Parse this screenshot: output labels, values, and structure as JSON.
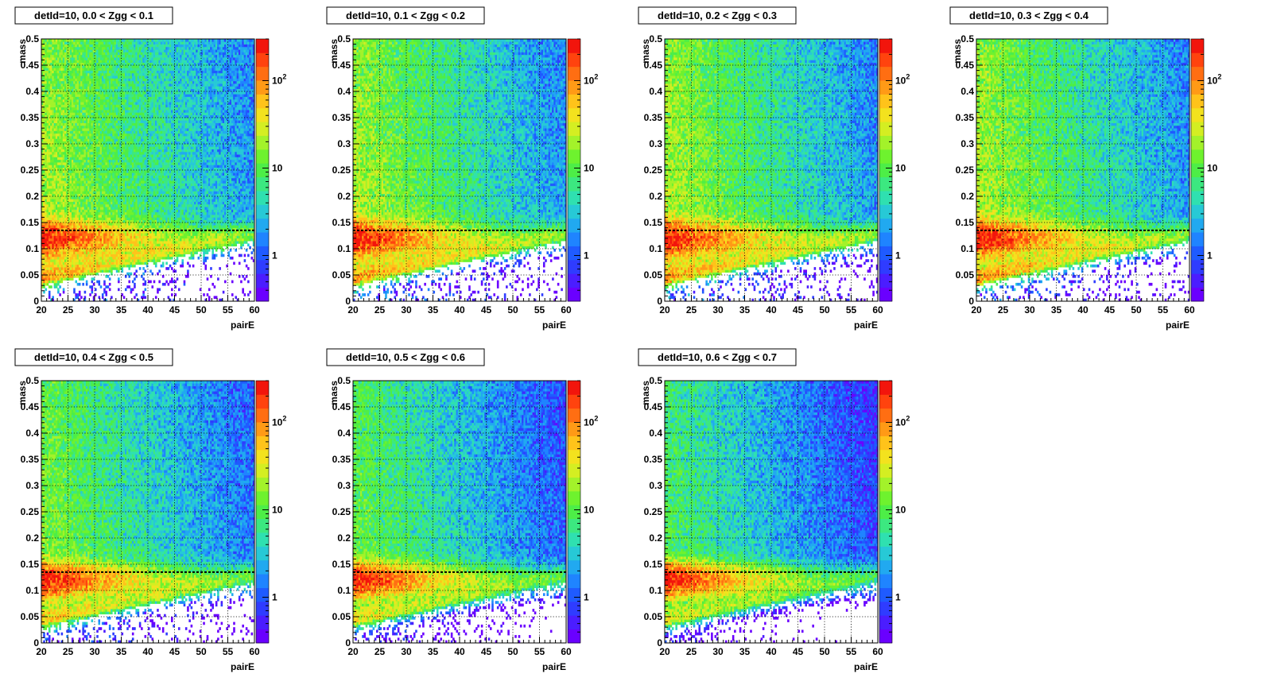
{
  "chart_data": [
    {
      "type": "heatmap",
      "title": "detId=10, 0.0 < Zgg < 0.1",
      "xlabel": "pairE",
      "ylabel": "mass",
      "xlim": [
        20,
        60
      ],
      "ylim": [
        0,
        0.5
      ],
      "x_ticks": [
        20,
        25,
        30,
        35,
        40,
        45,
        50,
        55,
        60
      ],
      "y_ticks": [
        0,
        0.05,
        0.1,
        0.15,
        0.2,
        0.25,
        0.3,
        0.35,
        0.4,
        0.45,
        0.5
      ],
      "z_scale": "log",
      "z_ticks": [
        "1",
        "10",
        "10^2"
      ],
      "z_max": 300,
      "grid": true,
      "reference_line_mass": 0.135,
      "peak": {
        "mass": 0.12,
        "pairE_center": 28,
        "max_counts": 300
      },
      "dist": {
        "a": 0.02,
        "b": 0.95,
        "bg": 40,
        "cd": 6,
        "ce": 20
      }
    },
    {
      "type": "heatmap",
      "title": "detId=10, 0.1 < Zgg < 0.2",
      "xlabel": "pairE",
      "ylabel": "mass",
      "xlim": [
        20,
        60
      ],
      "ylim": [
        0,
        0.5
      ],
      "x_ticks": [
        20,
        25,
        30,
        35,
        40,
        45,
        50,
        55,
        60
      ],
      "y_ticks": [
        0,
        0.05,
        0.1,
        0.15,
        0.2,
        0.25,
        0.3,
        0.35,
        0.4,
        0.45,
        0.5
      ],
      "z_scale": "log",
      "z_ticks": [
        "1",
        "10",
        "10^2"
      ],
      "z_max": 300,
      "grid": true,
      "reference_line_mass": 0.135,
      "peak": {
        "mass": 0.12,
        "pairE_center": 28,
        "max_counts": 300
      },
      "dist": {
        "a": 0.02,
        "b": 0.95,
        "bg": 40,
        "cd": 6,
        "ce": 20
      }
    },
    {
      "type": "heatmap",
      "title": "detId=10, 0.2 < Zgg < 0.3",
      "xlabel": "pairE",
      "ylabel": "mass",
      "xlim": [
        20,
        60
      ],
      "ylim": [
        0,
        0.5
      ],
      "x_ticks": [
        20,
        25,
        30,
        35,
        40,
        45,
        50,
        55,
        60
      ],
      "y_ticks": [
        0,
        0.05,
        0.1,
        0.15,
        0.2,
        0.25,
        0.3,
        0.35,
        0.4,
        0.45,
        0.5
      ],
      "z_scale": "log",
      "z_ticks": [
        "1",
        "10",
        "10^2"
      ],
      "z_max": 300,
      "grid": true,
      "reference_line_mass": 0.135,
      "peak": {
        "mass": 0.12,
        "pairE_center": 28,
        "max_counts": 300
      },
      "dist": {
        "a": 0.02,
        "b": 0.95,
        "bg": 40,
        "cd": 6,
        "ce": 20
      }
    },
    {
      "type": "heatmap",
      "title": "detId=10, 0.3 < Zgg < 0.4",
      "xlabel": "pairE",
      "ylabel": "mass",
      "xlim": [
        20,
        60
      ],
      "ylim": [
        0,
        0.5
      ],
      "x_ticks": [
        20,
        25,
        30,
        35,
        40,
        45,
        50,
        55,
        60
      ],
      "y_ticks": [
        0,
        0.05,
        0.1,
        0.15,
        0.2,
        0.25,
        0.3,
        0.35,
        0.4,
        0.45,
        0.5
      ],
      "z_scale": "log",
      "z_ticks": [
        "1",
        "10",
        "10^2"
      ],
      "z_max": 300,
      "grid": true,
      "reference_line_mass": 0.135,
      "peak": {
        "mass": 0.12,
        "pairE_center": 28,
        "max_counts": 300
      },
      "dist": {
        "a": 0.02,
        "b": 0.95,
        "bg": 40,
        "cd": 6,
        "ce": 20
      }
    },
    {
      "type": "heatmap",
      "title": "detId=10, 0.4 < Zgg < 0.5",
      "xlabel": "pairE",
      "ylabel": "mass",
      "xlim": [
        20,
        60
      ],
      "ylim": [
        0,
        0.5
      ],
      "x_ticks": [
        20,
        25,
        30,
        35,
        40,
        45,
        50,
        55,
        60
      ],
      "y_ticks": [
        0,
        0.05,
        0.1,
        0.15,
        0.2,
        0.25,
        0.3,
        0.35,
        0.4,
        0.45,
        0.5
      ],
      "z_scale": "log",
      "z_ticks": [
        "1",
        "10",
        "10^2"
      ],
      "z_max": 300,
      "grid": true,
      "reference_line_mass": 0.135,
      "peak": {
        "mass": 0.12,
        "pairE_center": 27,
        "max_counts": 300
      },
      "dist": {
        "a": 0.035,
        "b": 0.9,
        "bg": 30,
        "cd": 5,
        "ce": 15
      }
    },
    {
      "type": "heatmap",
      "title": "detId=10, 0.5 < Zgg < 0.6",
      "xlabel": "pairE",
      "ylabel": "mass",
      "xlim": [
        20,
        60
      ],
      "ylim": [
        0,
        0.5
      ],
      "x_ticks": [
        20,
        25,
        30,
        35,
        40,
        45,
        50,
        55,
        60
      ],
      "y_ticks": [
        0,
        0.05,
        0.1,
        0.15,
        0.2,
        0.25,
        0.3,
        0.35,
        0.4,
        0.45,
        0.5
      ],
      "z_scale": "log",
      "z_ticks": [
        "1",
        "10",
        "10^2"
      ],
      "z_max": 300,
      "grid": true,
      "reference_line_mass": 0.135,
      "peak": {
        "mass": 0.12,
        "pairE_center": 27,
        "max_counts": 300
      },
      "dist": {
        "a": 0.05,
        "b": 0.8,
        "bg": 25,
        "cd": 4,
        "ce": 12
      }
    },
    {
      "type": "heatmap",
      "title": "detId=10, 0.6 < Zgg < 0.7",
      "xlabel": "pairE",
      "ylabel": "mass",
      "xlim": [
        20,
        60
      ],
      "ylim": [
        0,
        0.5
      ],
      "x_ticks": [
        20,
        25,
        30,
        35,
        40,
        45,
        50,
        55,
        60
      ],
      "y_ticks": [
        0,
        0.05,
        0.1,
        0.15,
        0.2,
        0.25,
        0.3,
        0.35,
        0.4,
        0.45,
        0.5
      ],
      "z_scale": "log",
      "z_ticks": [
        "1",
        "10",
        "10^2"
      ],
      "z_max": 300,
      "grid": true,
      "reference_line_mass": 0.135,
      "peak": {
        "mass": 0.12,
        "pairE_center": 26,
        "max_counts": 300
      },
      "dist": {
        "a": 0.07,
        "b": 0.7,
        "bg": 20,
        "cd": 3,
        "ce": 10
      }
    }
  ],
  "palette": [
    "#6a00ff",
    "#4b1dff",
    "#2f3cff",
    "#1f5bff",
    "#1f84ff",
    "#21a9f0",
    "#27c9d6",
    "#2fe0b0",
    "#3ce880",
    "#4dee47",
    "#6ef22e",
    "#a3f22a",
    "#d4ee22",
    "#f3e21e",
    "#ffc31a",
    "#ff9a16",
    "#ff6e12",
    "#ff430e",
    "#f2150c"
  ]
}
